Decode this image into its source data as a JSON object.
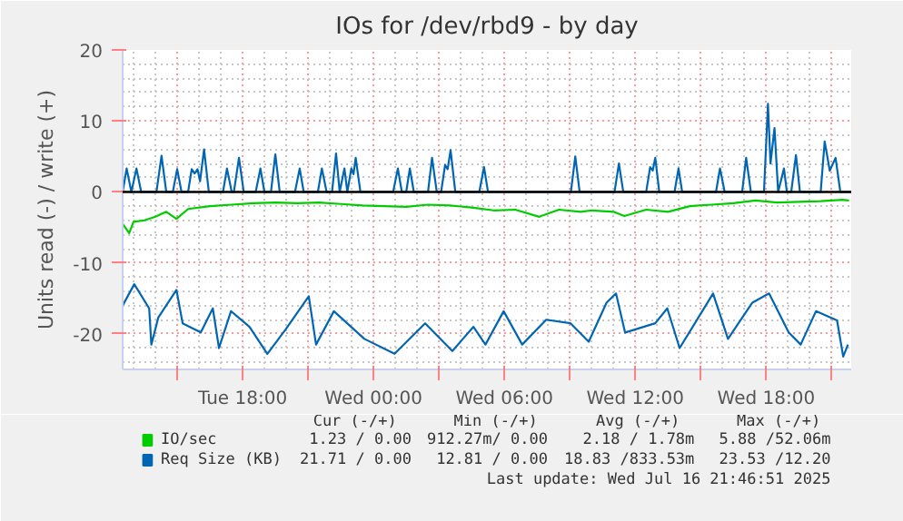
{
  "chart_data": {
    "type": "line",
    "title": "IOs for /dev/rbd9 - by day",
    "ylabel": "Units read (-) / write (+)",
    "xlim": [
      "2025-07-15T12:30",
      "2025-07-16T21:54"
    ],
    "ylim": [
      -25,
      20
    ],
    "xticks": [
      {
        "value": "2025-07-15T15:00",
        "label": null
      },
      {
        "value": "2025-07-15T18:00",
        "label": "Tue 18:00"
      },
      {
        "value": "2025-07-15T21:00",
        "label": null
      },
      {
        "value": "2025-07-16T00:00",
        "label": "Wed 00:00"
      },
      {
        "value": "2025-07-16T03:00",
        "label": null
      },
      {
        "value": "2025-07-16T06:00",
        "label": "Wed 06:00"
      },
      {
        "value": "2025-07-16T09:00",
        "label": null
      },
      {
        "value": "2025-07-16T12:00",
        "label": "Wed 12:00"
      },
      {
        "value": "2025-07-16T15:00",
        "label": null
      },
      {
        "value": "2025-07-16T18:00",
        "label": "Wed 18:00"
      },
      {
        "value": "2025-07-16T21:00",
        "label": null
      }
    ],
    "yticks": [
      -20,
      -10,
      0,
      10,
      20
    ],
    "grid": true,
    "legend": "bottom",
    "line_style": "solid",
    "ref_lines": [
      {
        "axis": "y",
        "value": 0,
        "color": "#000000"
      }
    ],
    "series": [
      {
        "name": "IO/sec",
        "color": "#00cc00",
        "x": [
          "2025-07-15T12:30",
          "2025-07-15T12:48",
          "2025-07-15T13:00",
          "2025-07-15T13:30",
          "2025-07-15T14:00",
          "2025-07-15T14:30",
          "2025-07-15T14:58",
          "2025-07-15T15:30",
          "2025-07-15T16:30",
          "2025-07-15T17:30",
          "2025-07-15T18:30",
          "2025-07-15T19:30",
          "2025-07-15T20:30",
          "2025-07-15T21:30",
          "2025-07-15T22:30",
          "2025-07-15T23:30",
          "2025-07-16T00:30",
          "2025-07-16T01:30",
          "2025-07-16T02:30",
          "2025-07-16T03:30",
          "2025-07-16T04:30",
          "2025-07-16T05:30",
          "2025-07-16T06:30",
          "2025-07-16T07:36",
          "2025-07-16T08:30",
          "2025-07-16T09:30",
          "2025-07-16T10:00",
          "2025-07-16T11:00",
          "2025-07-16T11:30",
          "2025-07-16T12:30",
          "2025-07-16T13:30",
          "2025-07-16T14:30",
          "2025-07-16T15:30",
          "2025-07-16T16:30",
          "2025-07-16T17:30",
          "2025-07-16T18:30",
          "2025-07-16T19:30",
          "2025-07-16T20:30",
          "2025-07-16T21:30",
          "2025-07-16T21:48"
        ],
        "values": [
          -4.5,
          -5.8,
          -4.2,
          -4.0,
          -3.5,
          -2.8,
          -3.8,
          -2.4,
          -2.0,
          -1.8,
          -1.6,
          -1.5,
          -1.6,
          -1.5,
          -1.7,
          -1.9,
          -2.0,
          -2.1,
          -1.8,
          -1.9,
          -2.2,
          -2.6,
          -2.5,
          -3.5,
          -2.5,
          -2.8,
          -2.6,
          -2.8,
          -3.4,
          -2.5,
          -2.8,
          -2.0,
          -1.8,
          -1.6,
          -1.2,
          -1.5,
          -1.4,
          -1.3,
          -1.1,
          -1.2
        ]
      },
      {
        "name": "Req Size (KB)",
        "color": "#0066b3",
        "x": [
          "2025-07-15T12:30",
          "2025-07-15T13:02",
          "2025-07-15T13:43",
          "2025-07-15T13:49",
          "2025-07-15T14:08",
          "2025-07-15T14:58",
          "2025-07-15T15:15",
          "2025-07-15T16:05",
          "2025-07-15T16:38",
          "2025-07-15T16:55",
          "2025-07-15T17:28",
          "2025-07-15T18:19",
          "2025-07-15T19:08",
          "2025-07-15T19:58",
          "2025-07-15T21:02",
          "2025-07-15T21:22",
          "2025-07-15T22:11",
          "2025-07-15T23:35",
          "2025-07-16T00:58",
          "2025-07-16T02:22",
          "2025-07-16T03:37",
          "2025-07-16T04:35",
          "2025-07-16T05:08",
          "2025-07-16T05:58",
          "2025-07-16T06:49",
          "2025-07-16T07:55",
          "2025-07-16T09:02",
          "2025-07-16T09:52",
          "2025-07-16T10:41",
          "2025-07-16T11:07",
          "2025-07-16T11:32",
          "2025-07-16T12:55",
          "2025-07-16T13:28",
          "2025-07-16T14:02",
          "2025-07-16T15:34",
          "2025-07-16T16:15",
          "2025-07-16T17:22",
          "2025-07-16T18:08",
          "2025-07-16T19:02",
          "2025-07-16T19:35",
          "2025-07-16T20:17",
          "2025-07-16T21:15",
          "2025-07-16T21:32",
          "2025-07-16T21:45"
        ],
        "values": [
          -16.0,
          -13.0,
          -16.4,
          -21.5,
          -17.7,
          -13.8,
          -18.5,
          -19.8,
          -16.4,
          -22.0,
          -16.8,
          -19.0,
          -22.8,
          -19.4,
          -14.7,
          -21.5,
          -16.8,
          -20.7,
          -22.8,
          -18.5,
          -22.4,
          -19.0,
          -21.5,
          -16.8,
          -21.5,
          -18.0,
          -18.5,
          -21.1,
          -15.6,
          -14.3,
          -19.8,
          -18.5,
          -16.4,
          -22.0,
          -14.3,
          -20.7,
          -15.6,
          -14.3,
          -19.8,
          -21.5,
          -16.8,
          -18.1,
          -23.2,
          -21.5
        ]
      },
      {
        "color": "#0066b3",
        "x": [
          "2025-07-15T12:30",
          "2025-07-15T12:41",
          "2025-07-15T12:54",
          "2025-07-15T13:08",
          "2025-07-15T13:21",
          "2025-07-15T14:03",
          "2025-07-15T14:17",
          "2025-07-15T14:30",
          "2025-07-15T14:48",
          "2025-07-15T15:00",
          "2025-07-15T15:12",
          "2025-07-15T15:30",
          "2025-07-15T15:40",
          "2025-07-15T15:48",
          "2025-07-15T15:56",
          "2025-07-15T16:03",
          "2025-07-15T16:14",
          "2025-07-15T16:27",
          "2025-07-15T17:06",
          "2025-07-15T17:17",
          "2025-07-15T17:30",
          "2025-07-15T17:36",
          "2025-07-15T17:50",
          "2025-07-15T18:03",
          "2025-07-15T18:36",
          "2025-07-15T18:49",
          "2025-07-15T19:00",
          "2025-07-15T19:18",
          "2025-07-15T19:30",
          "2025-07-15T19:42",
          "2025-07-15T20:24",
          "2025-07-15T20:37",
          "2025-07-15T20:48",
          "2025-07-15T21:27",
          "2025-07-15T21:38",
          "2025-07-15T21:51",
          "2025-07-15T22:06",
          "2025-07-15T22:17",
          "2025-07-15T22:27",
          "2025-07-15T22:40",
          "2025-07-15T22:48",
          "2025-07-15T22:59",
          "2025-07-15T23:05",
          "2025-07-15T23:11",
          "2025-07-15T23:24",
          "2025-07-16T00:54",
          "2025-07-16T01:07",
          "2025-07-16T01:18",
          "2025-07-16T01:30",
          "2025-07-16T01:40",
          "2025-07-16T01:51",
          "2025-07-16T02:30",
          "2025-07-16T02:41",
          "2025-07-16T02:54",
          "2025-07-16T03:06",
          "2025-07-16T03:17",
          "2025-07-16T03:24",
          "2025-07-16T03:32",
          "2025-07-16T03:45",
          "2025-07-16T04:51",
          "2025-07-16T05:04",
          "2025-07-16T05:15",
          "2025-07-16T09:03",
          "2025-07-16T09:15",
          "2025-07-16T09:27",
          "2025-07-16T11:03",
          "2025-07-16T11:15",
          "2025-07-16T11:27",
          "2025-07-16T12:30",
          "2025-07-16T12:41",
          "2025-07-16T12:48",
          "2025-07-16T12:55",
          "2025-07-16T13:06",
          "2025-07-16T13:48",
          "2025-07-16T13:59",
          "2025-07-16T14:09",
          "2025-07-16T15:42",
          "2025-07-16T15:53",
          "2025-07-16T16:06",
          "2025-07-16T16:54",
          "2025-07-16T17:05",
          "2025-07-16T17:18",
          "2025-07-16T17:54",
          "2025-07-16T18:05",
          "2025-07-16T18:12",
          "2025-07-16T18:23",
          "2025-07-16T18:33",
          "2025-07-16T18:49",
          "2025-07-16T18:57",
          "2025-07-16T19:09",
          "2025-07-16T19:22",
          "2025-07-16T19:33",
          "2025-07-16T20:30",
          "2025-07-16T20:41",
          "2025-07-16T20:55",
          "2025-07-16T21:11",
          "2025-07-16T21:24",
          "2025-07-16T21:54"
        ],
        "values": [
          0,
          3.3,
          0,
          3.3,
          0,
          0,
          5.1,
          0,
          0,
          3.2,
          0,
          0,
          3.2,
          2.6,
          3.2,
          1.5,
          6.0,
          0,
          0,
          3.3,
          0,
          0,
          4.8,
          0,
          0,
          3.3,
          0,
          0,
          5.3,
          0,
          0,
          3.3,
          0,
          0,
          3.3,
          0,
          0,
          5.4,
          0,
          3.3,
          0,
          3.3,
          2.5,
          4.8,
          0,
          0,
          3.3,
          0,
          0,
          3.3,
          0,
          0,
          4.8,
          0,
          0,
          3.8,
          3.2,
          5.9,
          0,
          0,
          3.5,
          0,
          0,
          5.0,
          0,
          0,
          4.0,
          0,
          0,
          3.5,
          3.0,
          4.8,
          0,
          0,
          3.3,
          0,
          0,
          3.3,
          0,
          0,
          4.8,
          0,
          0,
          12.4,
          4.0,
          9.0,
          0,
          3.3,
          0,
          0,
          5.2,
          0,
          0,
          7.1,
          3.0,
          4.8,
          0,
          0
        ]
      }
    ],
    "annotations": [
      "Cur (-/+)",
      "Min (-/+)",
      "Avg (-/+)",
      "Max (-/+)",
      "1.23 / 0.00",
      "912.27m/ 0.00",
      "2.18 / 1.78m",
      "5.88 /52.06m",
      "21.71 / 0.00",
      "12.81 / 0.00",
      "18.83 /833.53m",
      "23.53 /12.20",
      "Last update: Wed Jul 16 21:46:51 2025"
    ]
  }
}
